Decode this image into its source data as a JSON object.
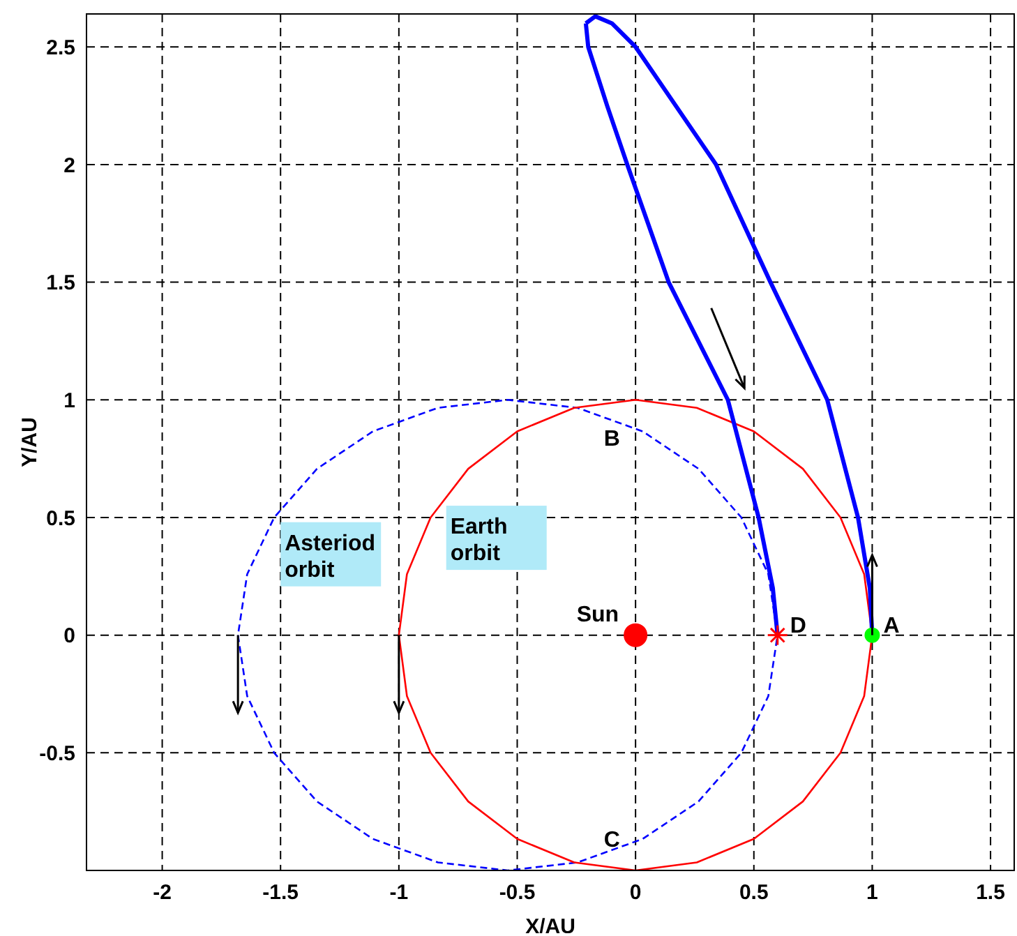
{
  "chart_data": {
    "type": "line",
    "xlabel": "X/AU",
    "ylabel": "Y/AU",
    "xlim": [
      -2.32,
      1.6
    ],
    "ylim": [
      -1,
      2.64
    ],
    "xticks": [
      -2,
      -1.5,
      -1,
      -0.5,
      0,
      0.5,
      1,
      1.5
    ],
    "yticks": [
      -0.5,
      0,
      0.5,
      1,
      1.5,
      2,
      2.5
    ],
    "grid": true,
    "legend": false,
    "marker": "none",
    "series": [
      {
        "name": "Asteriod orbit",
        "color": "#0000ff",
        "line_style": "dashed",
        "x": [
          0.6,
          0.561,
          0.447,
          0.266,
          0.03,
          -0.245,
          -0.54,
          -0.835,
          -1.11,
          -1.346,
          -1.527,
          -1.641,
          -1.68,
          null,
          -1.68,
          -1.641,
          -1.527,
          -1.346,
          -1.11,
          -0.835,
          -0.54,
          -0.245,
          0.03,
          0.266,
          0.447,
          0.561,
          0.6
        ],
        "values": [
          0,
          0.259,
          0.5,
          0.707,
          0.866,
          0.966,
          1,
          0.966,
          0.866,
          0.707,
          0.5,
          0.259,
          0,
          null,
          0,
          -0.259,
          -0.5,
          -0.707,
          -0.866,
          -0.966,
          -1,
          -0.966,
          -0.866,
          -0.707,
          -0.5,
          -0.259,
          0
        ]
      },
      {
        "name": "Earth orbit",
        "color": "#ff0000",
        "line_style": "solid",
        "x": [
          1,
          0.966,
          0.866,
          0.707,
          0.5,
          0.259,
          0,
          -0.259,
          -0.5,
          -0.707,
          -0.866,
          -0.966,
          -1,
          null,
          -1,
          -0.966,
          -0.866,
          -0.707,
          -0.5,
          -0.259,
          0,
          0.259,
          0.5,
          0.707,
          0.866,
          0.966,
          1
        ],
        "values": [
          0,
          0.259,
          0.5,
          0.707,
          0.866,
          0.966,
          1,
          0.966,
          0.866,
          0.707,
          0.5,
          0.259,
          0,
          null,
          0,
          -0.259,
          -0.5,
          -0.707,
          -0.866,
          -0.966,
          -1,
          -0.966,
          -0.866,
          -0.707,
          -0.5,
          -0.259,
          0
        ]
      },
      {
        "color": "#0000ff",
        "line_style": "solid",
        "x": [
          1,
          0.99,
          0.94,
          0.81,
          0.57,
          0.34,
          0.17,
          0,
          -0.1,
          -0.17,
          -0.21,
          null,
          -0.21,
          -0.2,
          -0.12,
          -0.035,
          0.14,
          0.39,
          0.52,
          0.58,
          0.6
        ],
        "values": [
          0,
          0.2,
          0.5,
          1,
          1.5,
          2,
          2.25,
          2.5,
          2.6,
          2.63,
          2.6,
          null,
          2.6,
          2.5,
          2.25,
          2,
          1.5,
          1,
          0.5,
          0.2,
          0
        ]
      },
      {
        "name": "Sun",
        "type": "scatter",
        "color": "#ff0000",
        "marker": "circle",
        "x": [
          0
        ],
        "values": [
          0
        ]
      },
      {
        "name": "D",
        "type": "scatter",
        "color": "#ff0000",
        "marker": "cross",
        "x": [
          0.6
        ],
        "values": [
          0
        ]
      },
      {
        "name": "A",
        "type": "scatter",
        "color": "#00ff00",
        "marker": "circle",
        "x": [
          1
        ],
        "values": [
          0
        ]
      }
    ],
    "annotations": [
      {
        "text": "B",
        "x": -0.24,
        "y": 0.97
      },
      {
        "text": "C",
        "x": -0.24,
        "y": -0.97
      }
    ]
  }
}
